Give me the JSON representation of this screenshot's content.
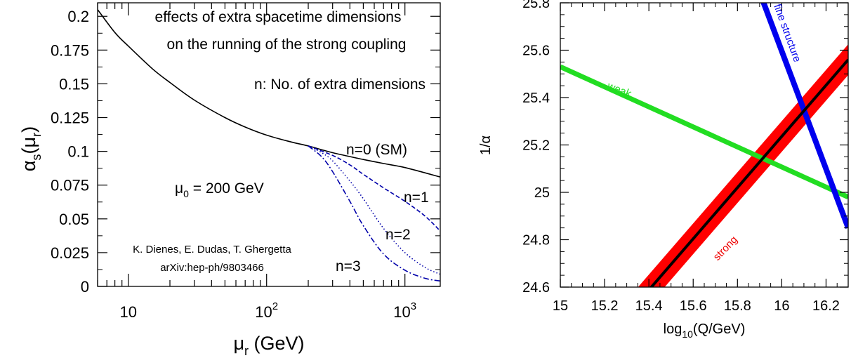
{
  "chart_data": [
    {
      "type": "line",
      "xscale": "log",
      "xlim": [
        6,
        1800
      ],
      "ylim": [
        0,
        0.21
      ],
      "xlabel": {
        "main": "μ",
        "sub": "r",
        "rest": " (GeV)"
      },
      "ylabel": {
        "main": "α",
        "sub1": "s",
        "mid": "(μ",
        "sub2": "r",
        "end": ")"
      },
      "x_ticks": [
        {
          "value": 10,
          "label": "10",
          "sup": ""
        },
        {
          "value": 100,
          "label": "10",
          "sup": "2"
        },
        {
          "value": 1000,
          "label": "10",
          "sup": "3"
        }
      ],
      "y_ticks": [
        {
          "value": 0,
          "label": "0"
        },
        {
          "value": 0.025,
          "label": "0.025"
        },
        {
          "value": 0.05,
          "label": "0.05"
        },
        {
          "value": 0.075,
          "label": "0.075"
        },
        {
          "value": 0.1,
          "label": "0.1"
        },
        {
          "value": 0.125,
          "label": "0.125"
        },
        {
          "value": 0.15,
          "label": "0.15"
        },
        {
          "value": 0.175,
          "label": "0.175"
        },
        {
          "value": 0.2,
          "label": "0.2"
        }
      ],
      "annotations": {
        "title_line1": "effects of extra spacetime dimensions",
        "title_line2": "on the running of the strong coupling",
        "legend_note": "n: No. of extra dimensions",
        "mu0": {
          "main": "μ",
          "sub": "0",
          "rest": " = 200 GeV"
        },
        "authors": "K. Dienes, E. Dudas, T. Ghergetta",
        "arxiv": "arXiv:hep-ph/9803466"
      },
      "series": [
        {
          "name": "n=0 (SM)",
          "color": "#000000",
          "style": "solid",
          "x": [
            6,
            8,
            10,
            15,
            20,
            30,
            50,
            70,
            100,
            150,
            200,
            300,
            500,
            700,
            1000,
            1800
          ],
          "y": [
            0.205,
            0.188,
            0.178,
            0.161,
            0.151,
            0.138,
            0.125,
            0.118,
            0.112,
            0.107,
            0.104,
            0.099,
            0.094,
            0.091,
            0.088,
            0.081
          ]
        },
        {
          "name": "n=1",
          "color": "#0000aa",
          "style": "dashed",
          "x": [
            200,
            300,
            400,
            500,
            700,
            1000,
            1400,
            1800
          ],
          "y": [
            0.104,
            0.097,
            0.09,
            0.083,
            0.073,
            0.063,
            0.052,
            0.041
          ]
        },
        {
          "name": "n=2",
          "color": "#0000aa",
          "style": "dotted",
          "x": [
            200,
            250,
            300,
            400,
            500,
            700,
            1000,
            1400,
            1800
          ],
          "y": [
            0.104,
            0.099,
            0.093,
            0.078,
            0.065,
            0.043,
            0.025,
            0.014,
            0.009
          ]
        },
        {
          "name": "n=3",
          "color": "#0000aa",
          "style": "dashdot",
          "x": [
            200,
            250,
            300,
            400,
            500,
            700,
            1000,
            1400,
            1800
          ],
          "y": [
            0.104,
            0.096,
            0.085,
            0.063,
            0.045,
            0.024,
            0.012,
            0.006,
            0.004
          ]
        }
      ]
    },
    {
      "type": "line",
      "xlim": [
        15,
        16.3
      ],
      "ylim": [
        24.6,
        25.8
      ],
      "xlabel": {
        "pre": "log",
        "sub": "10",
        "rest": "(Q/GeV)"
      },
      "ylabel": "1/α",
      "x_ticks": [
        {
          "value": 15,
          "label": "15"
        },
        {
          "value": 15.2,
          "label": "15.2"
        },
        {
          "value": 15.4,
          "label": "15.4"
        },
        {
          "value": 15.6,
          "label": "15.6"
        },
        {
          "value": 15.8,
          "label": "15.8"
        },
        {
          "value": 16,
          "label": "16"
        },
        {
          "value": 16.2,
          "label": "16.2"
        }
      ],
      "y_ticks": [
        {
          "value": 24.6,
          "label": "24.6"
        },
        {
          "value": 24.8,
          "label": "24.8"
        },
        {
          "value": 25,
          "label": "25"
        },
        {
          "value": 25.2,
          "label": "25.2"
        },
        {
          "value": 25.4,
          "label": "25.4"
        },
        {
          "value": 25.6,
          "label": "25.6"
        },
        {
          "value": 25.8,
          "label": "25.8"
        }
      ],
      "series": [
        {
          "name": "weak",
          "color": "#22dd22",
          "x": [
            15,
            16.3
          ],
          "y": [
            25.53,
            24.98
          ]
        },
        {
          "name": "fine structure",
          "color": "#0000ee",
          "x": [
            15.91,
            16.3
          ],
          "y": [
            25.82,
            24.85
          ]
        },
        {
          "name": "strong",
          "color": "#000000",
          "band_color": "#ff0000",
          "band_halfwidth": 0.065,
          "x": [
            15.3,
            16.3
          ],
          "y": [
            24.48,
            25.56
          ]
        }
      ]
    }
  ]
}
